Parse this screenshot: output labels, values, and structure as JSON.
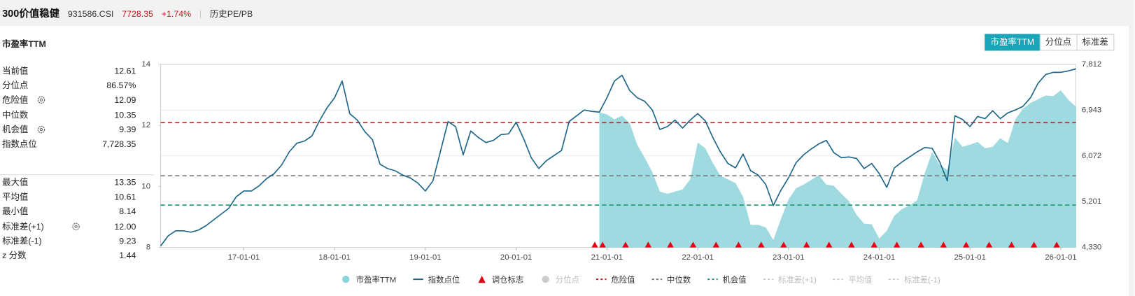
{
  "header": {
    "name": "300价值稳健",
    "code": "931586.CSI",
    "price": "7728.35",
    "change": "+1.74%",
    "link": "历史PE/PB"
  },
  "panel_title": "市盈率TTM",
  "tabs": [
    "市盈率TTM",
    "分位点",
    "标准差"
  ],
  "active_tab": 0,
  "stats": [
    [
      {
        "label": "当前值",
        "value": "12.61"
      },
      {
        "label": "分位点",
        "value": "86.57%"
      },
      {
        "label": "危险值",
        "value": "12.09",
        "setting": true
      },
      {
        "label": "中位数",
        "value": "10.35"
      },
      {
        "label": "机会值",
        "value": "9.39",
        "setting": true
      },
      {
        "label": "指数点位",
        "value": "7,728.35"
      }
    ],
    [
      {
        "label": "最大值",
        "value": "13.35"
      },
      {
        "label": "平均值",
        "value": "10.61"
      },
      {
        "label": "最小值",
        "value": "8.14"
      },
      {
        "label": "标准差(+1)",
        "value": "12.00",
        "setting": true
      },
      {
        "label": "标准差(-1)",
        "value": "9.23"
      },
      {
        "label": "z 分数",
        "value": "1.44"
      }
    ]
  ],
  "chart_data": {
    "type": "combo",
    "x": [
      "16-02-01",
      "16-03-01",
      "16-04-01",
      "16-05-01",
      "16-06-01",
      "16-07-01",
      "16-08-01",
      "16-09-01",
      "16-10-01",
      "16-11-01",
      "16-12-01",
      "17-01-01",
      "17-02-01",
      "17-03-01",
      "17-04-01",
      "17-05-01",
      "17-06-01",
      "17-07-01",
      "17-08-01",
      "17-09-01",
      "17-10-01",
      "17-11-01",
      "17-12-01",
      "18-01-01",
      "18-02-01",
      "18-03-01",
      "18-04-01",
      "18-05-01",
      "18-06-01",
      "18-07-01",
      "18-08-01",
      "18-09-01",
      "18-10-01",
      "18-11-01",
      "18-12-01",
      "19-01-01",
      "19-02-01",
      "19-03-01",
      "19-04-01",
      "19-05-01",
      "19-06-01",
      "19-07-01",
      "19-08-01",
      "19-09-01",
      "19-10-01",
      "19-11-01",
      "19-12-01",
      "20-01-01",
      "20-02-01",
      "20-03-01",
      "20-04-01",
      "20-05-01",
      "20-06-01",
      "20-07-01",
      "20-08-01",
      "20-09-01",
      "20-10-01",
      "20-11-01",
      "20-12-01",
      "21-01-01",
      "21-02-01",
      "21-03-01",
      "21-04-01",
      "21-05-01",
      "21-06-01",
      "21-07-01",
      "21-08-01",
      "21-09-01",
      "21-10-01",
      "21-11-01",
      "21-12-01",
      "22-01-01",
      "22-02-01",
      "22-03-01",
      "22-04-01",
      "22-05-01",
      "22-06-01",
      "22-07-01",
      "22-08-01",
      "22-09-01",
      "22-10-01",
      "22-11-01",
      "22-12-01",
      "23-01-01",
      "23-02-01",
      "23-03-01",
      "23-04-01",
      "23-05-01",
      "23-06-01",
      "23-07-01",
      "23-08-01",
      "23-09-01",
      "23-10-01",
      "23-11-01",
      "23-12-01",
      "24-01-01",
      "24-02-01",
      "24-03-01",
      "24-04-01",
      "24-05-01",
      "24-06-01",
      "24-07-01",
      "24-08-01",
      "24-09-01",
      "24-10-01",
      "24-11-01",
      "24-12-01",
      "25-01-01",
      "25-02-01",
      "25-03-01",
      "25-04-01",
      "25-05-01",
      "25-06-01",
      "25-07-01",
      "25-08-01",
      "25-09-01",
      "25-10-01",
      "25-11-01",
      "25-12-01",
      "26-01-01",
      "26-02-01",
      "26-03-01"
    ],
    "xlim": [
      "16-02-01",
      "26-03-01"
    ],
    "xticks": [
      "17-01-01",
      "18-01-01",
      "19-01-01",
      "20-01-01",
      "21-01-01",
      "22-01-01",
      "23-01-01",
      "24-01-01",
      "25-01-01",
      "26-01-01"
    ],
    "ylim": [
      8,
      14
    ],
    "yticks": [
      8,
      10,
      12,
      14
    ],
    "y2lim": [
      4330,
      7812
    ],
    "y2ticks": [
      {
        "value": 4330,
        "label": "4,330"
      },
      {
        "value": 5201,
        "label": "5,201"
      },
      {
        "value": 6072,
        "label": "6,072"
      },
      {
        "value": 6943,
        "label": "6,943"
      },
      {
        "value": 7812,
        "label": "7,812"
      }
    ],
    "grid": true,
    "series": [
      {
        "name": "市盈率TTM",
        "type": "area",
        "axis": "y",
        "color": "#8dd3db",
        "values": [
          null,
          null,
          null,
          null,
          null,
          null,
          null,
          null,
          null,
          null,
          null,
          null,
          null,
          null,
          null,
          null,
          null,
          null,
          null,
          null,
          null,
          null,
          null,
          null,
          null,
          null,
          null,
          null,
          null,
          null,
          null,
          null,
          null,
          null,
          null,
          null,
          null,
          null,
          null,
          null,
          null,
          null,
          null,
          null,
          null,
          null,
          null,
          null,
          null,
          null,
          null,
          null,
          null,
          null,
          null,
          null,
          null,
          null,
          12.43,
          12.36,
          12.2,
          12.32,
          12.08,
          11.37,
          10.94,
          10.47,
          9.83,
          9.76,
          9.83,
          9.9,
          10.23,
          11.44,
          11.25,
          10.77,
          10.35,
          10.23,
          10.11,
          9.66,
          8.74,
          8.74,
          8.66,
          8.24,
          8.93,
          9.57,
          9.94,
          10.06,
          10.21,
          10.37,
          10.06,
          10.02,
          9.76,
          9.52,
          9.07,
          8.78,
          8.76,
          8.29,
          8.55,
          9.04,
          9.26,
          9.38,
          9.54,
          10.42,
          11.13,
          10.7,
          10.54,
          11.6,
          11.3,
          11.37,
          11.46,
          11.25,
          11.3,
          11.58,
          11.42,
          12.2,
          12.55,
          12.74,
          12.86,
          12.98,
          12.96,
          13.15,
          12.84,
          12.61
        ]
      },
      {
        "name": "指数点位",
        "type": "line",
        "axis": "y2",
        "color": "#1d6689",
        "values": [
          4358,
          4551,
          4647,
          4647,
          4620,
          4661,
          4744,
          4854,
          4964,
          5074,
          5294,
          5404,
          5404,
          5500,
          5638,
          5734,
          5899,
          6147,
          6312,
          6353,
          6450,
          6739,
          6986,
          7179,
          7496,
          6876,
          6752,
          6532,
          6381,
          5913,
          5831,
          5789,
          5707,
          5652,
          5555,
          5404,
          5597,
          6161,
          6725,
          6629,
          6092,
          6546,
          6422,
          6326,
          6367,
          6477,
          6491,
          6711,
          6395,
          6037,
          5831,
          5982,
          6078,
          6175,
          6725,
          6835,
          6945,
          6918,
          6904,
          7179,
          7496,
          7606,
          7317,
          7179,
          7110,
          6945,
          6574,
          6629,
          6752,
          6601,
          6752,
          6876,
          6739,
          6422,
          6147,
          5927,
          5844,
          6106,
          5789,
          5707,
          5528,
          5129,
          5418,
          5652,
          5941,
          6092,
          6202,
          6298,
          6367,
          6133,
          6037,
          6051,
          6023,
          5831,
          5927,
          5734,
          5473,
          5844,
          5954,
          6051,
          6147,
          6230,
          6216,
          5954,
          5597,
          6835,
          6766,
          6629,
          6821,
          6780,
          6931,
          6780,
          6890,
          6945,
          7014,
          7179,
          7454,
          7619,
          7661,
          7661,
          7688,
          7728.35
        ]
      },
      {
        "name": "调仓标志",
        "type": "marker",
        "color": "#e60012",
        "x": [
          "20-11-13",
          "20-12-14",
          "21-03-15",
          "21-06-15",
          "21-09-13",
          "21-12-13",
          "22-03-14",
          "22-06-13",
          "22-09-13",
          "22-12-12",
          "23-03-13",
          "23-06-12",
          "23-09-11",
          "23-12-11",
          "24-03-11",
          "24-06-17",
          "24-09-16",
          "24-12-16",
          "25-03-17",
          "25-06-16",
          "25-09-15",
          "25-12-15"
        ]
      }
    ],
    "inactive_series": [
      {
        "name": "分位点",
        "color": "#cccccc"
      }
    ],
    "reference_lines": [
      {
        "name": "危险值",
        "value": 12.09,
        "color": "#c9171e",
        "visible": true
      },
      {
        "name": "中位数",
        "value": 10.35,
        "color": "#777777",
        "visible": true
      },
      {
        "name": "机会值",
        "value": 9.39,
        "color": "#1a9a6c",
        "visible": true
      },
      {
        "name": "标准差(+1)",
        "value": 12,
        "color": "#cccccc",
        "visible": false
      },
      {
        "name": "平均值",
        "value": 10.61,
        "color": "#cccccc",
        "visible": false
      },
      {
        "name": "标准差(-1)",
        "value": 9.23,
        "color": "#cccccc",
        "visible": false
      }
    ]
  }
}
